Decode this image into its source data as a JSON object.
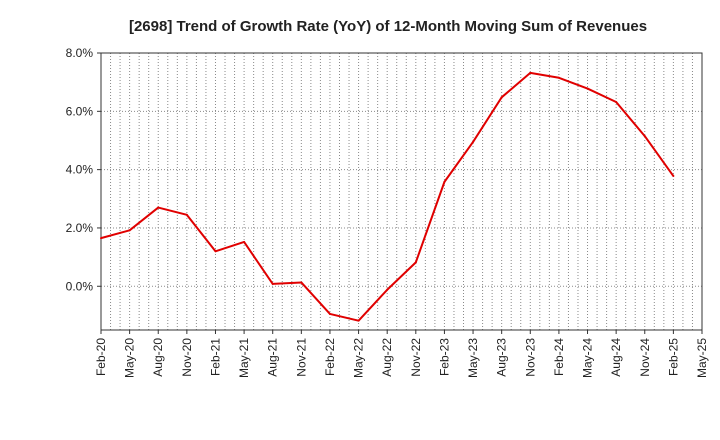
{
  "chart_data": {
    "type": "line",
    "title": "[2698]  Trend of Growth Rate (YoY) of 12-Month Moving Sum of Revenues",
    "xlabel": "",
    "ylabel": "",
    "ylim": [
      -1.5,
      8.0
    ],
    "yticks": [
      0.0,
      2.0,
      4.0,
      6.0,
      8.0
    ],
    "ytick_labels": [
      "0.0%",
      "2.0%",
      "4.0%",
      "6.0%",
      "8.0%"
    ],
    "x_labels": [
      "Feb-20",
      "May-20",
      "Aug-20",
      "Nov-20",
      "Feb-21",
      "May-21",
      "Aug-21",
      "Nov-21",
      "Feb-22",
      "May-22",
      "Aug-22",
      "Nov-22",
      "Feb-23",
      "May-23",
      "Aug-23",
      "Nov-23",
      "Feb-24",
      "May-24",
      "Aug-24",
      "Nov-24",
      "Feb-25",
      "May-25"
    ],
    "grid": true,
    "series": [
      {
        "color": "#e00000",
        "x": [
          "Feb-20",
          "May-20",
          "Aug-20",
          "Nov-20",
          "Feb-21",
          "May-21",
          "Aug-21",
          "Nov-21",
          "Feb-22",
          "May-22",
          "Aug-22",
          "Nov-22",
          "Feb-23",
          "May-23",
          "Aug-23",
          "Nov-23",
          "Feb-24",
          "May-24",
          "Aug-24",
          "Nov-24",
          "Feb-25"
        ],
        "values": [
          1.65,
          1.92,
          2.7,
          2.45,
          1.2,
          1.52,
          0.08,
          0.13,
          -0.95,
          -1.18,
          -0.12,
          0.82,
          3.58,
          4.95,
          6.48,
          7.32,
          7.15,
          6.78,
          6.32,
          5.15,
          3.78
        ]
      }
    ]
  }
}
